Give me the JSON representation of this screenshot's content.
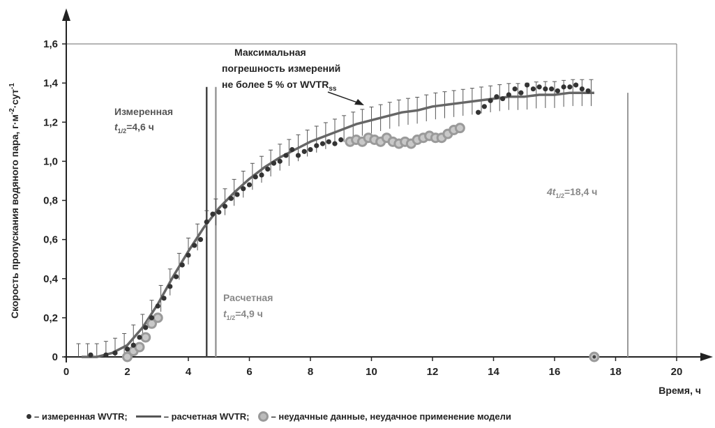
{
  "chart_data": {
    "type": "scatter",
    "ylabel_main": "Скорость пропускания водяного пара, г·м",
    "ylabel_sup1": "-2",
    "ylabel_mid": "·сут",
    "ylabel_sup2": "-1",
    "xlabel": "Время, ч",
    "xlim": [
      0,
      20
    ],
    "ylim": [
      0,
      1.6
    ],
    "x_ticks": [
      "0",
      "2",
      "4",
      "6",
      "8",
      "10",
      "12",
      "14",
      "16",
      "18",
      "20"
    ],
    "y_ticks": [
      "0",
      "0,2",
      "0,4",
      "0,6",
      "0,8",
      "1,0",
      "1,2",
      "1,4",
      "1,6"
    ],
    "annotations": {
      "max_error_line1": "Максимальная",
      "max_error_line2": "погрешность измерений",
      "max_error_line3": "не более 5 % от WVTR",
      "max_error_sub": "ss",
      "measured_line1": "Измеренная",
      "measured_t": "t",
      "measured_sub": "1/2",
      "measured_value": "=4,6 ч",
      "calculated_line1": "Расчетная",
      "calculated_t": "t",
      "calculated_sub": "1/2",
      "calculated_value": "=4,9 ч",
      "fourt_prefix": "4t",
      "fourt_sub": "1/2",
      "fourt_value": "=18,4 ч"
    },
    "vlines": {
      "measured_half": 4.6,
      "calculated_half": 4.9,
      "four_half": 18.4
    },
    "series": [
      {
        "name": "измеренная WVTR",
        "x": [
          0.8,
          1.3,
          1.6,
          2.0,
          2.2,
          2.4,
          2.6,
          2.8,
          3.0,
          3.2,
          3.4,
          3.6,
          3.8,
          4.0,
          4.2,
          4.4,
          4.6,
          4.8,
          5.0,
          5.2,
          5.4,
          5.6,
          5.8,
          6.0,
          6.2,
          6.4,
          6.6,
          6.8,
          7.0,
          7.2,
          7.4,
          7.6,
          7.8,
          8.0,
          8.2,
          8.4,
          8.6,
          8.8,
          9.0,
          13.5,
          13.7,
          13.9,
          14.1,
          14.3,
          14.5,
          14.7,
          14.9,
          15.1,
          15.3,
          15.5,
          15.7,
          15.9,
          16.1,
          16.3,
          16.5,
          16.7,
          16.9,
          17.1
        ],
        "y": [
          0.01,
          0.01,
          0.02,
          0.04,
          0.06,
          0.1,
          0.15,
          0.2,
          0.26,
          0.3,
          0.36,
          0.41,
          0.47,
          0.52,
          0.57,
          0.6,
          0.69,
          0.73,
          0.74,
          0.77,
          0.81,
          0.83,
          0.86,
          0.88,
          0.92,
          0.93,
          0.96,
          0.99,
          1.0,
          1.03,
          1.06,
          1.03,
          1.05,
          1.06,
          1.08,
          1.09,
          1.1,
          1.09,
          1.11,
          1.25,
          1.28,
          1.31,
          1.33,
          1.32,
          1.34,
          1.37,
          1.35,
          1.39,
          1.37,
          1.38,
          1.37,
          1.37,
          1.36,
          1.38,
          1.38,
          1.39,
          1.37,
          1.36
        ]
      },
      {
        "name": "расчетная WVTR",
        "x": [
          0.5,
          1.0,
          1.5,
          2.0,
          2.5,
          3.0,
          3.5,
          4.0,
          4.5,
          5.0,
          5.5,
          6.0,
          6.5,
          7.0,
          7.5,
          8.0,
          8.5,
          9.0,
          9.5,
          10.0,
          10.5,
          11.0,
          11.5,
          12.0,
          12.5,
          13.0,
          13.5,
          14.0,
          14.5,
          15.0,
          15.5,
          16.0,
          16.5,
          17.0,
          17.3
        ],
        "y": [
          0.0,
          0.0,
          0.02,
          0.06,
          0.15,
          0.27,
          0.41,
          0.54,
          0.66,
          0.76,
          0.84,
          0.91,
          0.97,
          1.02,
          1.06,
          1.1,
          1.13,
          1.16,
          1.19,
          1.21,
          1.23,
          1.25,
          1.26,
          1.28,
          1.29,
          1.3,
          1.31,
          1.32,
          1.33,
          1.33,
          1.34,
          1.34,
          1.35,
          1.35,
          1.35
        ],
        "error_pct": 0.05
      },
      {
        "name": "неудачные данные, неудачное применение модели",
        "x": [
          2.0,
          2.2,
          2.4,
          2.6,
          2.8,
          3.0,
          9.3,
          9.5,
          9.7,
          9.9,
          10.1,
          10.3,
          10.5,
          10.7,
          10.9,
          11.1,
          11.3,
          11.5,
          11.7,
          11.9,
          12.1,
          12.3,
          12.5,
          12.7,
          12.9,
          17.3
        ],
        "y": [
          0.0,
          0.03,
          0.05,
          0.1,
          0.17,
          0.2,
          1.1,
          1.11,
          1.1,
          1.12,
          1.11,
          1.1,
          1.12,
          1.1,
          1.09,
          1.1,
          1.09,
          1.11,
          1.12,
          1.13,
          1.12,
          1.12,
          1.14,
          1.16,
          1.17,
          0.0
        ]
      }
    ],
    "legend": {
      "measured": "– измеренная WVTR;",
      "calculated": "– расчетная WVTR;",
      "failed": "– неудачные данные, неудачное применение модели"
    }
  }
}
